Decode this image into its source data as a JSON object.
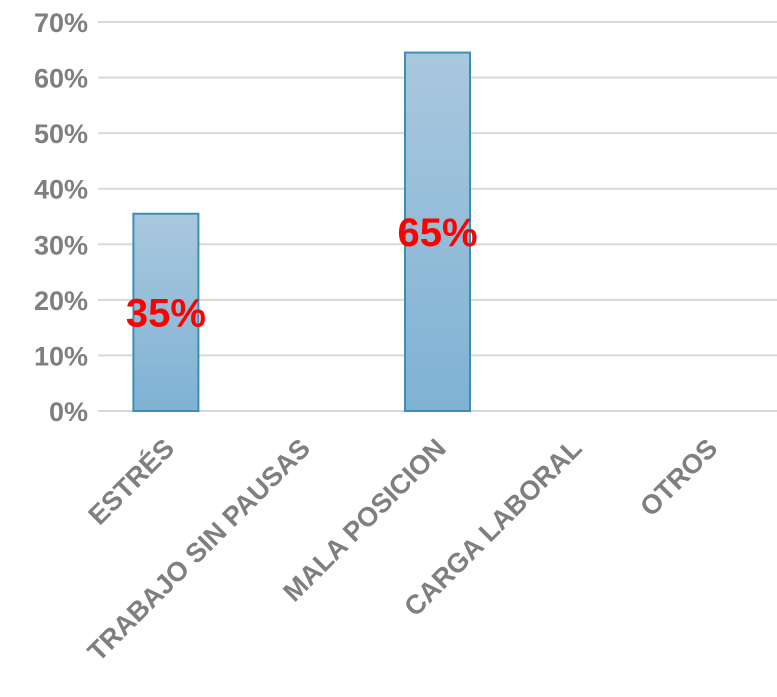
{
  "chart_data": {
    "type": "bar",
    "categories": [
      "ESTRÉS",
      "TRABAJO SIN PAUSAS",
      "MALA POSICION",
      "CARGA LABORAL",
      "OTROS"
    ],
    "values": [
      0.355,
      0,
      0.645,
      0,
      0
    ],
    "data_labels": [
      "35%",
      "",
      "65%",
      "",
      ""
    ],
    "ylim": [
      0,
      0.7
    ],
    "yticks": [
      0,
      0.1,
      0.2,
      0.3,
      0.4,
      0.5,
      0.6,
      0.7
    ],
    "ytick_labels": [
      "0%",
      "10%",
      "20%",
      "30%",
      "40%",
      "50%",
      "60%",
      "70%"
    ],
    "grid": true,
    "colors": {
      "bar_top": "#a9c8de",
      "bar_bottom": "#7fb2d4",
      "bar_edge": "#3a8fb5",
      "label": "#ff0000",
      "tick": "#7f7f7f",
      "grid": "#d9d9d9"
    }
  }
}
